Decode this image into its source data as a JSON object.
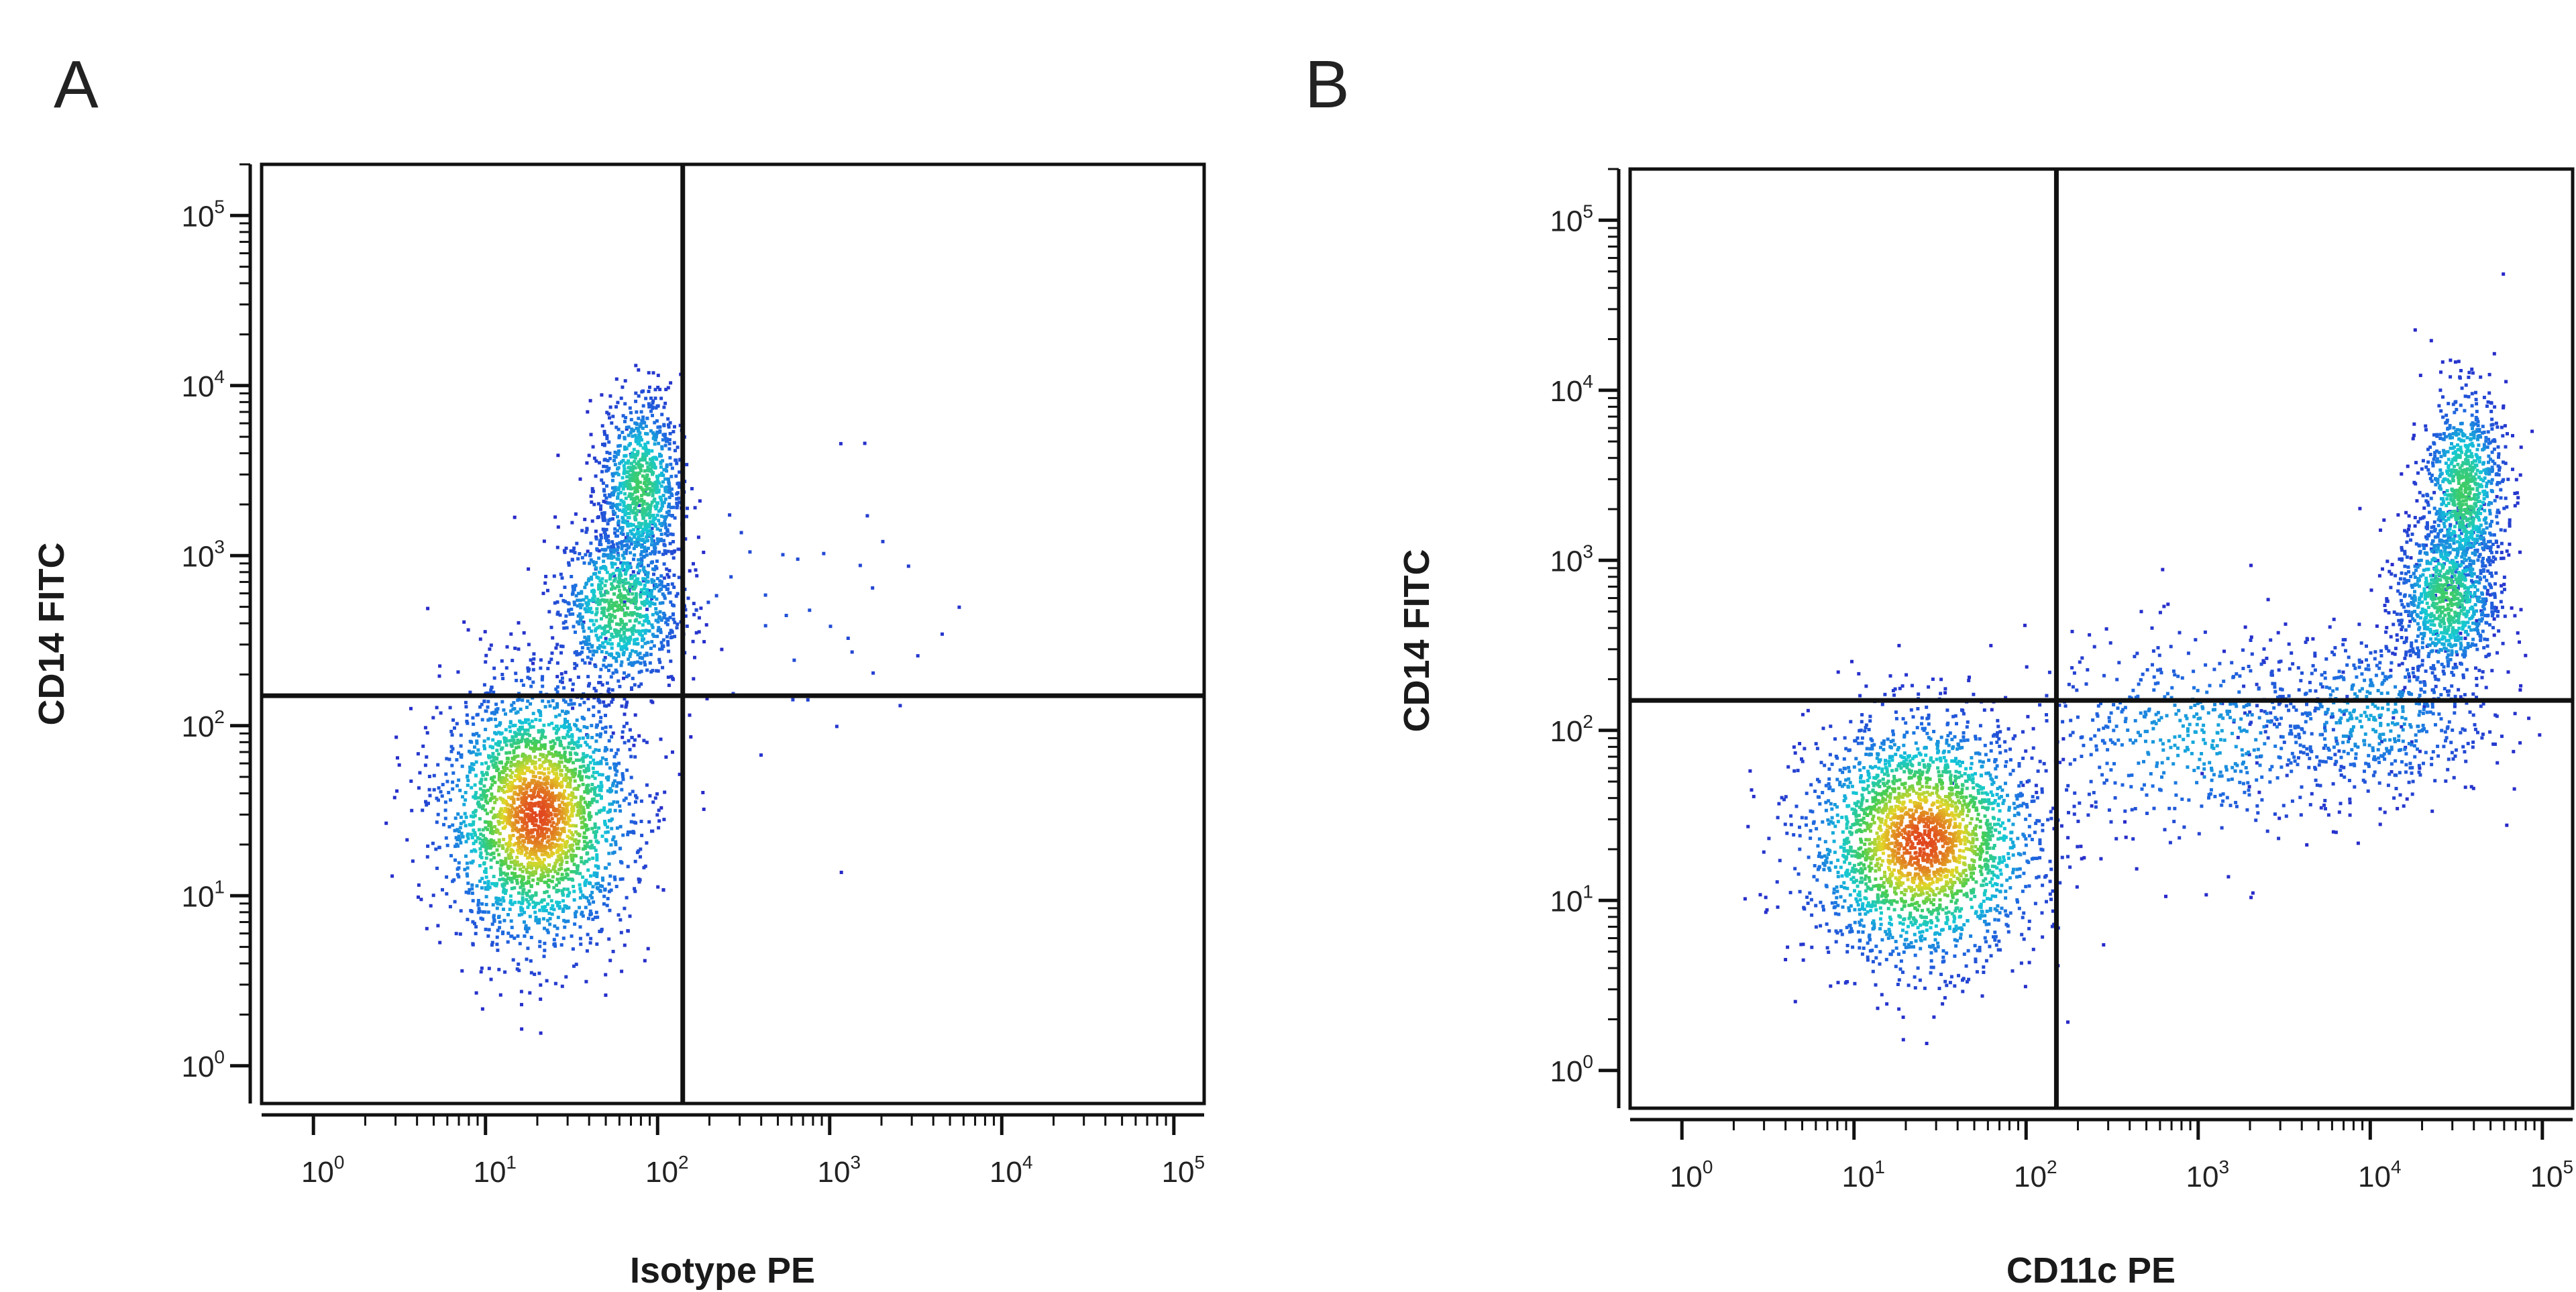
{
  "panels": [
    {
      "label": "A",
      "xlabel": "Isotype PE",
      "ylabel": "CD14 FITC"
    },
    {
      "label": "B",
      "xlabel": "CD11c PE",
      "ylabel": "CD14 FITC"
    }
  ],
  "chart_data": [
    {
      "type": "scatter",
      "title": "",
      "panel_label": "A",
      "xlabel": "Isotype PE",
      "ylabel": "CD14 FITC",
      "xscale": "log",
      "yscale": "log",
      "xlim": [
        0.5,
        150000
      ],
      "ylim": [
        0.6,
        200000
      ],
      "x_ticks": [
        "10^0",
        "10^1",
        "10^2",
        "10^3",
        "10^4",
        "10^5"
      ],
      "y_ticks": [
        "10^0",
        "10^1",
        "10^2",
        "10^3",
        "10^4",
        "10^5"
      ],
      "grid": false,
      "legend": "none",
      "colormap": "density (blue-cyan-green-yellow-red)",
      "quadrant_gates": {
        "x": 140,
        "y": 150
      },
      "populations": [
        {
          "name": "CD14- isotype-",
          "center_x": 20,
          "center_y": 30,
          "spread_log_x": 0.27,
          "spread_log_y": 0.38,
          "relative_density": "high"
        },
        {
          "name": "CD14+ cluster",
          "center_x": 80,
          "center_y": 2500,
          "spread_log_x": 0.12,
          "spread_log_y": 0.28,
          "relative_density": "medium"
        },
        {
          "name": "CD14 intermediate",
          "center_x": 60,
          "center_y": 500,
          "spread_log_x": 0.18,
          "spread_log_y": 0.25,
          "relative_density": "medium"
        },
        {
          "name": "CD14+ isotype+ (sparse)",
          "center_x": 500,
          "center_y": 500,
          "spread_log_x": 0.6,
          "spread_log_y": 0.5,
          "relative_density": "very low"
        }
      ]
    },
    {
      "type": "scatter",
      "title": "",
      "panel_label": "B",
      "xlabel": "CD11c PE",
      "ylabel": "CD14 FITC",
      "xscale": "log",
      "yscale": "log",
      "xlim": [
        0.5,
        150000
      ],
      "ylim": [
        0.6,
        200000
      ],
      "x_ticks": [
        "10^0",
        "10^1",
        "10^2",
        "10^3",
        "10^4",
        "10^5"
      ],
      "y_ticks": [
        "10^0",
        "10^1",
        "10^2",
        "10^3",
        "10^4",
        "10^5"
      ],
      "grid": false,
      "legend": "none",
      "colormap": "density (blue-cyan-green-yellow-red)",
      "quadrant_gates": {
        "x": 150,
        "y": 150
      },
      "populations": [
        {
          "name": "CD14- CD11c-",
          "center_x": 25,
          "center_y": 22,
          "spread_log_x": 0.33,
          "spread_log_y": 0.35,
          "relative_density": "high"
        },
        {
          "name": "CD14+ CD11c+ (high)",
          "center_x": 35000,
          "center_y": 2500,
          "spread_log_x": 0.12,
          "spread_log_y": 0.3,
          "relative_density": "medium"
        },
        {
          "name": "CD14+ CD11c+ (mid)",
          "center_x": 28000,
          "center_y": 600,
          "spread_log_x": 0.15,
          "spread_log_y": 0.25,
          "relative_density": "medium"
        },
        {
          "name": "CD11c+ CD14 low",
          "center_x": 10000,
          "center_y": 120,
          "spread_log_x": 0.35,
          "spread_log_y": 0.25,
          "relative_density": "low"
        },
        {
          "name": "bridge",
          "center_x": 1000,
          "center_y": 90,
          "spread_log_x": 0.5,
          "spread_log_y": 0.3,
          "relative_density": "low"
        }
      ]
    }
  ]
}
